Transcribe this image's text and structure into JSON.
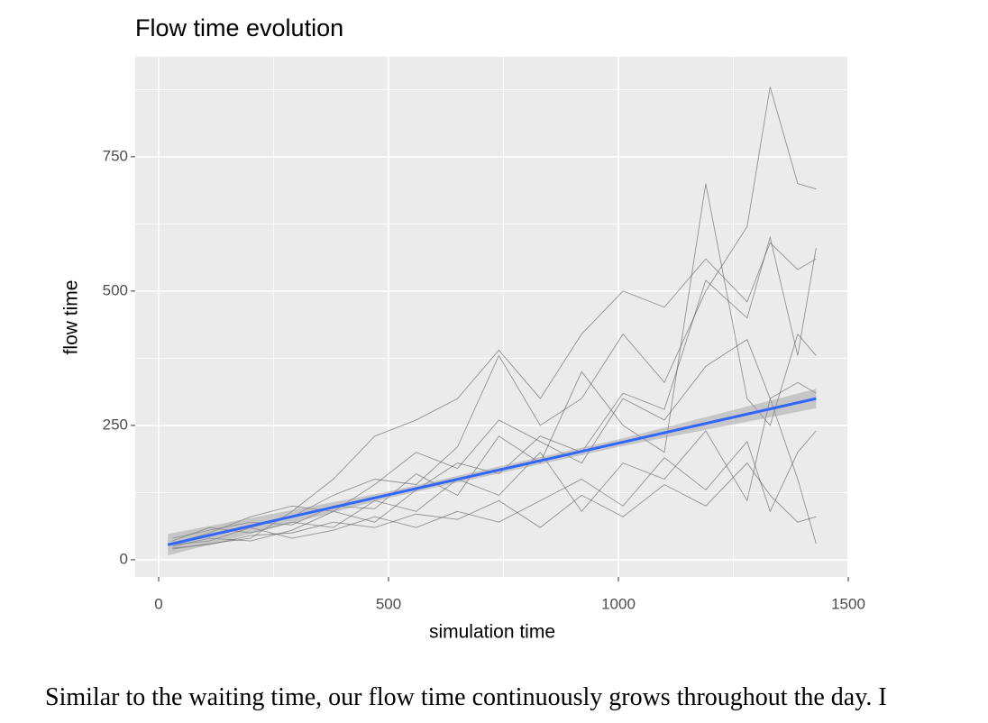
{
  "chart_data": {
    "type": "line",
    "title": "Flow time evolution",
    "x_label": "simulation time",
    "y_label": "flow time",
    "xlim": [
      -51,
      1500
    ],
    "ylim": [
      -32,
      936
    ],
    "xticks": [
      0,
      500,
      1000,
      1500
    ],
    "yticks": [
      0,
      250,
      500,
      750
    ],
    "minor_xticks": [
      250,
      750,
      1250
    ],
    "minor_yticks": [
      125,
      375,
      625,
      875
    ],
    "grid": true,
    "x": [
      30,
      110,
      200,
      290,
      380,
      470,
      560,
      650,
      740,
      830,
      920,
      1010,
      1100,
      1190,
      1280,
      1330,
      1390,
      1430
    ],
    "series": [
      {
        "color": "#555555",
        "values": [
          30,
          45,
          60,
          80,
          120,
          150,
          140,
          210,
          380,
          250,
          300,
          420,
          330,
          500,
          620,
          880,
          700,
          690
        ]
      },
      {
        "color": "#555555",
        "values": [
          25,
          40,
          35,
          55,
          90,
          70,
          130,
          180,
          160,
          230,
          200,
          310,
          280,
          520,
          450,
          600,
          380,
          580
        ]
      },
      {
        "color": "#555555",
        "values": [
          35,
          60,
          50,
          70,
          60,
          110,
          90,
          150,
          120,
          200,
          90,
          180,
          150,
          240,
          110,
          300,
          150,
          30
        ]
      },
      {
        "color": "#555555",
        "values": [
          20,
          30,
          40,
          90,
          150,
          230,
          260,
          300,
          390,
          300,
          420,
          500,
          470,
          560,
          480,
          590,
          540,
          560
        ]
      },
      {
        "color": "#555555",
        "values": [
          40,
          55,
          70,
          65,
          100,
          95,
          160,
          120,
          230,
          180,
          350,
          250,
          200,
          700,
          300,
          250,
          420,
          380
        ]
      },
      {
        "color": "#555555",
        "values": [
          28,
          35,
          60,
          40,
          55,
          80,
          60,
          90,
          70,
          110,
          150,
          100,
          190,
          130,
          220,
          90,
          200,
          240
        ]
      },
      {
        "color": "#555555",
        "values": [
          30,
          50,
          80,
          100,
          90,
          140,
          200,
          170,
          260,
          220,
          180,
          300,
          260,
          360,
          410,
          300,
          330,
          310
        ]
      },
      {
        "color": "#555555",
        "values": [
          22,
          28,
          45,
          50,
          70,
          60,
          85,
          75,
          110,
          60,
          120,
          80,
          140,
          100,
          180,
          120,
          70,
          80
        ]
      }
    ],
    "smooth": {
      "color": "#3366ff",
      "band_color": "#999999",
      "x": [
        20,
        500,
        1000,
        1430
      ],
      "values": [
        28,
        121,
        217,
        300
      ],
      "lower": [
        8,
        115,
        210,
        282
      ],
      "upper": [
        48,
        127,
        224,
        318
      ]
    }
  },
  "paragraph": "Similar to the waiting time, our flow time continuously grows throughout the day. I"
}
